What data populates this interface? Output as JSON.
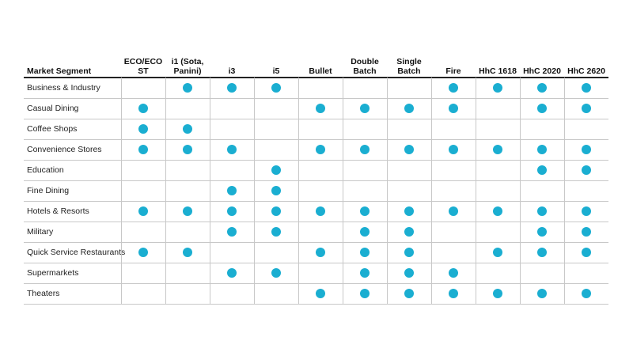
{
  "table": {
    "header": [
      "Market Segment",
      "ECO/ECO ST",
      "i1 (Sota, Panini)",
      "i3",
      "i5",
      "Bullet",
      "Double Batch",
      "Single Batch",
      "Fire",
      "HhC 1618",
      "HhC 2020",
      "HhC 2620"
    ],
    "rows": [
      {
        "label": "Business & Industry",
        "cells": [
          false,
          true,
          true,
          true,
          false,
          false,
          false,
          true,
          true,
          true,
          true
        ]
      },
      {
        "label": "Casual Dining",
        "cells": [
          true,
          false,
          false,
          false,
          true,
          true,
          true,
          true,
          false,
          true,
          true
        ]
      },
      {
        "label": "Coffee Shops",
        "cells": [
          true,
          true,
          false,
          false,
          false,
          false,
          false,
          false,
          false,
          false,
          false
        ]
      },
      {
        "label": "Convenience Stores",
        "cells": [
          true,
          true,
          true,
          false,
          true,
          true,
          true,
          true,
          true,
          true,
          true
        ]
      },
      {
        "label": "Education",
        "cells": [
          false,
          false,
          false,
          true,
          false,
          false,
          false,
          false,
          false,
          true,
          true
        ]
      },
      {
        "label": "Fine Dining",
        "cells": [
          false,
          false,
          true,
          true,
          false,
          false,
          false,
          false,
          false,
          false,
          false
        ]
      },
      {
        "label": "Hotels & Resorts",
        "cells": [
          true,
          true,
          true,
          true,
          true,
          true,
          true,
          true,
          true,
          true,
          true
        ]
      },
      {
        "label": "Military",
        "cells": [
          false,
          false,
          true,
          true,
          false,
          true,
          true,
          false,
          false,
          true,
          true
        ]
      },
      {
        "label": "Quick Service Restaurants",
        "cells": [
          true,
          true,
          false,
          false,
          true,
          true,
          true,
          false,
          true,
          true,
          true
        ]
      },
      {
        "label": "Supermarkets",
        "cells": [
          false,
          false,
          true,
          true,
          false,
          true,
          true,
          true,
          false,
          false,
          false
        ]
      },
      {
        "label": "Theaters",
        "cells": [
          false,
          false,
          false,
          false,
          true,
          true,
          true,
          true,
          true,
          true,
          true
        ]
      }
    ]
  }
}
